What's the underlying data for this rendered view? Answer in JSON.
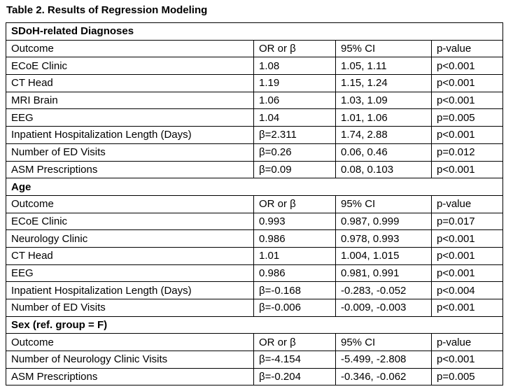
{
  "title": "Table 2. Results of Regression Modeling",
  "sections": [
    {
      "heading": "SDoH-related Diagnoses",
      "header": [
        "Outcome",
        "OR or β",
        "95% CI",
        "p-value"
      ],
      "rows": [
        [
          "ECoE Clinic",
          "1.08",
          "1.05, 1.11",
          "p<0.001"
        ],
        [
          "CT Head",
          "1.19",
          "1.15, 1.24",
          "p<0.001"
        ],
        [
          "MRI Brain",
          "1.06",
          "1.03, 1.09",
          "p<0.001"
        ],
        [
          "EEG",
          "1.04",
          "1.01, 1.06",
          "p=0.005"
        ],
        [
          "Inpatient Hospitalization Length (Days)",
          "β=2.311",
          "1.74, 2.88",
          "p<0.001"
        ],
        [
          "Number of ED Visits",
          "β=0.26",
          "0.06, 0.46",
          "p=0.012"
        ],
        [
          "ASM Prescriptions",
          "β=0.09",
          "0.08, 0.103",
          "p<0.001"
        ]
      ]
    },
    {
      "heading": "Age",
      "header": [
        "Outcome",
        "OR or β",
        "95% CI",
        "p-value"
      ],
      "rows": [
        [
          "ECoE Clinic",
          "0.993",
          "0.987, 0.999",
          "p=0.017"
        ],
        [
          "Neurology Clinic",
          "0.986",
          "0.978, 0.993",
          "p<0.001"
        ],
        [
          "CT Head",
          "1.01",
          "1.004, 1.015",
          "p<0.001"
        ],
        [
          "EEG",
          "0.986",
          "0.981, 0.991",
          "p<0.001"
        ],
        [
          "Inpatient Hospitalization Length (Days)",
          "β=-0.168",
          "-0.283, -0.052",
          "p<0.004"
        ],
        [
          "Number of ED Visits",
          "β=-0.006",
          "-0.009, -0.003",
          "p<0.001"
        ]
      ]
    },
    {
      "heading": "Sex (ref. group = F)",
      "header": [
        "Outcome",
        "OR or β",
        "95% CI",
        "p-value"
      ],
      "rows": [
        [
          "Number of Neurology Clinic Visits",
          "β=-4.154",
          "-5.499, -2.808",
          "p<0.001"
        ],
        [
          "ASM Prescriptions",
          "β=-0.204",
          "-0.346, -0.062",
          "p=0.005"
        ]
      ]
    }
  ]
}
